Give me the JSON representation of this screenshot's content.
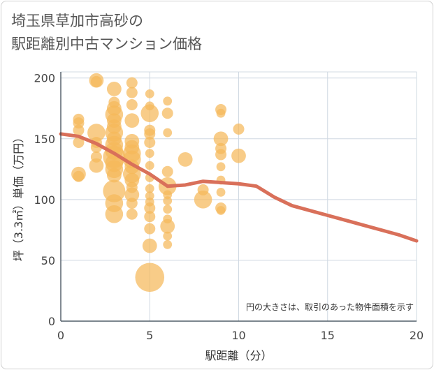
{
  "title": "埼玉県草加市高砂の\n駅距離別中古マンション価格",
  "chart_data": {
    "type": "scatter",
    "title": "埼玉県草加市高砂の駅距離別中古マンション価格",
    "xlabel": "駅距離（分）",
    "ylabel": "坪（3.3㎡）単価（万円）",
    "xlim": [
      0,
      20
    ],
    "ylim": [
      0,
      205
    ],
    "xticks": [
      0,
      5,
      10,
      15,
      20
    ],
    "yticks": [
      0,
      50,
      100,
      150,
      200
    ],
    "grid": true,
    "note": "円の大きさは、取引のあった物件面積を示す",
    "bubble_color": "#f5b95a",
    "line_color": "#d9705a",
    "points": [
      {
        "x": 1,
        "y": 166,
        "s": 1.0
      },
      {
        "x": 1,
        "y": 163,
        "s": 1.0
      },
      {
        "x": 1,
        "y": 157,
        "s": 1.0
      },
      {
        "x": 1,
        "y": 147,
        "s": 1.0
      },
      {
        "x": 1,
        "y": 121,
        "s": 1.3
      },
      {
        "x": 1,
        "y": 119,
        "s": 1.0
      },
      {
        "x": 2,
        "y": 198,
        "s": 1.3
      },
      {
        "x": 2,
        "y": 197,
        "s": 1.0
      },
      {
        "x": 2,
        "y": 155,
        "s": 1.6
      },
      {
        "x": 2,
        "y": 147,
        "s": 1.0
      },
      {
        "x": 2,
        "y": 143,
        "s": 1.0
      },
      {
        "x": 2,
        "y": 135,
        "s": 1.0
      },
      {
        "x": 2,
        "y": 128,
        "s": 1.3
      },
      {
        "x": 3,
        "y": 191,
        "s": 1.3
      },
      {
        "x": 3,
        "y": 180,
        "s": 1.0
      },
      {
        "x": 3,
        "y": 175,
        "s": 1.3
      },
      {
        "x": 3,
        "y": 170,
        "s": 1.6
      },
      {
        "x": 3,
        "y": 165,
        "s": 1.3
      },
      {
        "x": 3,
        "y": 160,
        "s": 1.3
      },
      {
        "x": 3,
        "y": 155,
        "s": 1.6
      },
      {
        "x": 3,
        "y": 150,
        "s": 1.3
      },
      {
        "x": 3,
        "y": 145,
        "s": 1.6
      },
      {
        "x": 3,
        "y": 140,
        "s": 1.6
      },
      {
        "x": 3,
        "y": 135,
        "s": 2.0
      },
      {
        "x": 3,
        "y": 130,
        "s": 1.6
      },
      {
        "x": 3,
        "y": 125,
        "s": 1.6
      },
      {
        "x": 3,
        "y": 120,
        "s": 1.3
      },
      {
        "x": 3,
        "y": 107,
        "s": 2.0
      },
      {
        "x": 3,
        "y": 97,
        "s": 1.6
      },
      {
        "x": 3,
        "y": 88,
        "s": 1.6
      },
      {
        "x": 4,
        "y": 196,
        "s": 1.0
      },
      {
        "x": 4,
        "y": 188,
        "s": 1.0
      },
      {
        "x": 4,
        "y": 178,
        "s": 1.0
      },
      {
        "x": 4,
        "y": 165,
        "s": 1.3
      },
      {
        "x": 4,
        "y": 148,
        "s": 1.3
      },
      {
        "x": 4,
        "y": 143,
        "s": 1.3
      },
      {
        "x": 4,
        "y": 138,
        "s": 1.6
      },
      {
        "x": 4,
        "y": 133,
        "s": 1.6
      },
      {
        "x": 4,
        "y": 127,
        "s": 1.3
      },
      {
        "x": 4,
        "y": 121,
        "s": 1.6
      },
      {
        "x": 4,
        "y": 116,
        "s": 1.3
      },
      {
        "x": 4,
        "y": 110,
        "s": 1.0
      },
      {
        "x": 4,
        "y": 104,
        "s": 1.3
      },
      {
        "x": 4,
        "y": 97,
        "s": 1.0
      },
      {
        "x": 4,
        "y": 88,
        "s": 1.0
      },
      {
        "x": 5,
        "y": 187,
        "s": 0.8
      },
      {
        "x": 5,
        "y": 177,
        "s": 0.8
      },
      {
        "x": 5,
        "y": 171,
        "s": 1.6
      },
      {
        "x": 5,
        "y": 157,
        "s": 1.0
      },
      {
        "x": 5,
        "y": 154,
        "s": 1.0
      },
      {
        "x": 5,
        "y": 147,
        "s": 1.0
      },
      {
        "x": 5,
        "y": 138,
        "s": 0.8
      },
      {
        "x": 5,
        "y": 128,
        "s": 0.8
      },
      {
        "x": 5,
        "y": 118,
        "s": 0.8
      },
      {
        "x": 5,
        "y": 109,
        "s": 0.8
      },
      {
        "x": 5,
        "y": 103,
        "s": 0.8
      },
      {
        "x": 5,
        "y": 98,
        "s": 0.8
      },
      {
        "x": 5,
        "y": 93,
        "s": 1.0
      },
      {
        "x": 5,
        "y": 86,
        "s": 1.0
      },
      {
        "x": 5,
        "y": 76,
        "s": 1.0
      },
      {
        "x": 5,
        "y": 62,
        "s": 1.3
      },
      {
        "x": 5,
        "y": 36,
        "s": 2.6
      },
      {
        "x": 6,
        "y": 181,
        "s": 0.8
      },
      {
        "x": 6,
        "y": 171,
        "s": 1.0
      },
      {
        "x": 6,
        "y": 155,
        "s": 0.8
      },
      {
        "x": 6,
        "y": 123,
        "s": 1.0
      },
      {
        "x": 6,
        "y": 111,
        "s": 1.6
      },
      {
        "x": 6,
        "y": 104,
        "s": 0.8
      },
      {
        "x": 6,
        "y": 99,
        "s": 0.8
      },
      {
        "x": 6,
        "y": 92,
        "s": 0.8
      },
      {
        "x": 6,
        "y": 84,
        "s": 0.8
      },
      {
        "x": 6,
        "y": 78,
        "s": 1.3
      },
      {
        "x": 6,
        "y": 70,
        "s": 0.8
      },
      {
        "x": 6,
        "y": 63,
        "s": 0.8
      },
      {
        "x": 7,
        "y": 133,
        "s": 1.3
      },
      {
        "x": 8,
        "y": 108,
        "s": 1.0
      },
      {
        "x": 8,
        "y": 100,
        "s": 1.6
      },
      {
        "x": 9,
        "y": 174,
        "s": 1.0
      },
      {
        "x": 9,
        "y": 171,
        "s": 0.8
      },
      {
        "x": 9,
        "y": 150,
        "s": 1.3
      },
      {
        "x": 9,
        "y": 142,
        "s": 1.0
      },
      {
        "x": 9,
        "y": 137,
        "s": 1.0
      },
      {
        "x": 9,
        "y": 127,
        "s": 0.8
      },
      {
        "x": 9,
        "y": 116,
        "s": 0.8
      },
      {
        "x": 9,
        "y": 106,
        "s": 0.8
      },
      {
        "x": 9,
        "y": 93,
        "s": 1.0
      },
      {
        "x": 9,
        "y": 91,
        "s": 0.8
      },
      {
        "x": 10,
        "y": 158,
        "s": 1.0
      },
      {
        "x": 10,
        "y": 136,
        "s": 1.3
      }
    ],
    "trend": {
      "x": [
        0,
        1,
        2,
        3,
        4,
        5,
        6,
        7,
        8,
        9,
        10,
        11,
        12,
        13,
        14,
        15,
        16,
        17,
        18,
        19,
        20
      ],
      "y": [
        154,
        152,
        146,
        138,
        129,
        121,
        111,
        112,
        115,
        114,
        113,
        111,
        102,
        95,
        91,
        87,
        83,
        79,
        75,
        71,
        66
      ]
    }
  }
}
